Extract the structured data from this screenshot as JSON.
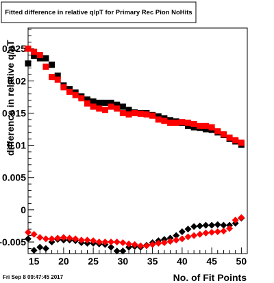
{
  "chart_data": {
    "type": "scatter",
    "title": "Fitted difference in relative q/pT for Primary Rec Pion NoHits",
    "xlabel": "No. of Fit Points",
    "ylabel": "difference in relative q/pT",
    "xlim": [
      14,
      51
    ],
    "ylim": [
      -0.0068,
      0.0282
    ],
    "xticks": [
      15,
      20,
      25,
      30,
      35,
      40,
      45,
      50
    ],
    "xtick_labels": [
      "15",
      "20",
      "25",
      "30",
      "35",
      "40",
      "45",
      "50"
    ],
    "yticks": [
      -0.005,
      0,
      0.005,
      0.01,
      0.015,
      0.02,
      0.025
    ],
    "ytick_labels": [
      "-0.005",
      "0",
      "0.005",
      "0.01",
      "0.015",
      "0.02",
      "0.025"
    ],
    "grid": false,
    "legend": "none",
    "x": [
      14,
      15,
      16,
      17,
      18,
      19,
      20,
      21,
      22,
      23,
      24,
      25,
      26,
      27,
      28,
      29,
      30,
      31,
      32,
      33,
      34,
      35,
      36,
      37,
      38,
      39,
      40,
      41,
      42,
      43,
      44,
      45,
      46,
      47,
      48,
      49,
      50
    ],
    "series": [
      {
        "marker": "square",
        "color": "#000000",
        "values": [
          0.0227,
          0.0239,
          0.0235,
          0.0235,
          0.0225,
          0.0208,
          0.0193,
          0.0187,
          0.0182,
          0.0176,
          0.0171,
          0.0168,
          0.0166,
          0.0166,
          0.0166,
          0.0163,
          0.016,
          0.0155,
          0.0151,
          0.015,
          0.015,
          0.0147,
          0.0145,
          0.0142,
          0.0139,
          0.0137,
          0.0135,
          0.013,
          0.0128,
          0.0127,
          0.0125,
          0.0124,
          0.012,
          0.0116,
          0.011,
          0.0106,
          0.0101
        ]
      },
      {
        "marker": "square",
        "color": "#ff0000",
        "values": [
          0.025,
          0.0245,
          0.024,
          0.0222,
          0.0206,
          0.0202,
          0.019,
          0.0183,
          0.0178,
          0.0173,
          0.0165,
          0.016,
          0.0157,
          0.0155,
          0.016,
          0.0157,
          0.015,
          0.0148,
          0.015,
          0.0149,
          0.0148,
          0.0146,
          0.014,
          0.0138,
          0.0135,
          0.0135,
          0.0136,
          0.0135,
          0.0133,
          0.013,
          0.013,
          0.0128,
          0.0122,
          0.0117,
          0.0112,
          0.0108,
          0.0104
        ]
      },
      {
        "marker": "diamond",
        "color": "#000000",
        "values": [
          -0.0045,
          -0.0063,
          -0.0058,
          -0.006,
          -0.005,
          -0.0046,
          -0.0047,
          -0.0047,
          -0.0048,
          -0.0051,
          -0.0052,
          -0.0052,
          -0.0053,
          -0.0054,
          -0.0058,
          -0.0064,
          -0.0064,
          -0.0058,
          -0.0057,
          -0.0058,
          -0.0055,
          -0.0051,
          -0.0048,
          -0.0046,
          -0.0044,
          -0.004,
          -0.0034,
          -0.003,
          -0.0026,
          -0.0025,
          -0.0024,
          -0.0024,
          -0.0023,
          -0.0024,
          -0.0024,
          -0.0021,
          -0.0013
        ]
      },
      {
        "marker": "diamond",
        "color": "#ff0000",
        "values": [
          -0.0035,
          -0.0038,
          -0.0043,
          -0.0045,
          -0.0045,
          -0.0044,
          -0.0043,
          -0.0044,
          -0.0045,
          -0.0047,
          -0.0047,
          -0.0048,
          -0.005,
          -0.005,
          -0.005,
          -0.005,
          -0.0051,
          -0.0053,
          -0.0054,
          -0.0056,
          -0.0056,
          -0.0054,
          -0.0052,
          -0.0051,
          -0.0049,
          -0.0047,
          -0.0045,
          -0.0042,
          -0.004,
          -0.0038,
          -0.0036,
          -0.0035,
          -0.0034,
          -0.0033,
          -0.0029,
          -0.0016,
          -0.0012
        ]
      }
    ]
  },
  "footer": {
    "timestamp": "Fri Sep  8 09:47:45 2017"
  }
}
